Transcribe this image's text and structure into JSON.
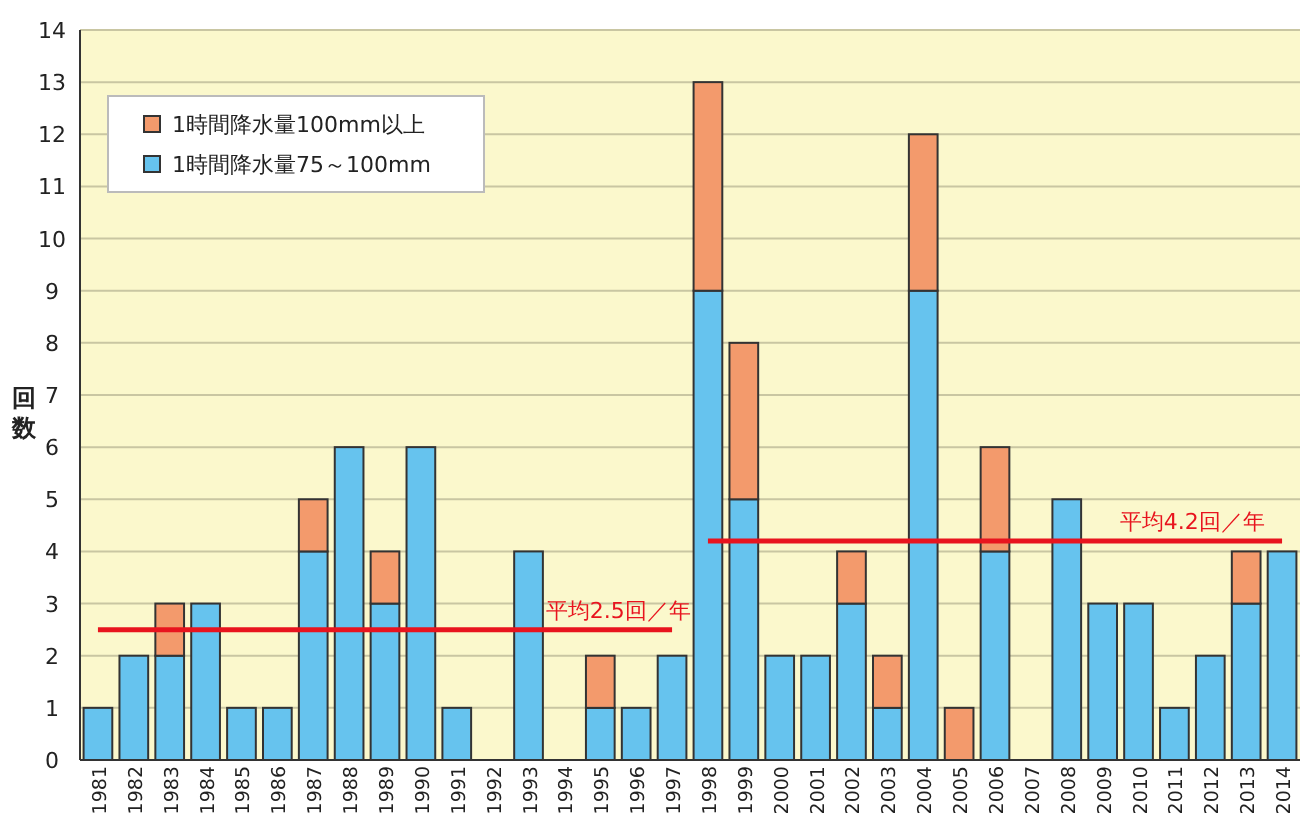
{
  "chart_data": {
    "type": "bar",
    "stacked": true,
    "ylabel": "回数",
    "categories": [
      "1981",
      "1982",
      "1983",
      "1984",
      "1985",
      "1986",
      "1987",
      "1988",
      "1989",
      "1990",
      "1991",
      "1992",
      "1993",
      "1994",
      "1995",
      "1996",
      "1997",
      "1998",
      "1999",
      "2000",
      "2001",
      "2002",
      "2003",
      "2004",
      "2005",
      "2006",
      "2007",
      "2008",
      "2009",
      "2010",
      "2011",
      "2012",
      "2013",
      "2014"
    ],
    "series": [
      {
        "name": "1時間降水量75～100mm",
        "color": "#66c3ee",
        "values": [
          1,
          2,
          2,
          3,
          1,
          1,
          4,
          6,
          3,
          6,
          1,
          null,
          4,
          null,
          1,
          1,
          2,
          9,
          5,
          2,
          2,
          3,
          1,
          9,
          null,
          4,
          null,
          5,
          3,
          3,
          1,
          2,
          3,
          4
        ]
      },
      {
        "name": "1時間降水量100mm以上",
        "color": "#f39a6c",
        "values": [
          null,
          null,
          1,
          null,
          null,
          null,
          1,
          null,
          1,
          null,
          null,
          null,
          null,
          null,
          1,
          null,
          null,
          4,
          3,
          null,
          null,
          1,
          1,
          3,
          1,
          2,
          null,
          null,
          null,
          null,
          null,
          null,
          1,
          null
        ]
      },
      {
        "name": "平均2.5回／年",
        "type": "line",
        "color": "#e8141e",
        "values": [
          2.5,
          2.5,
          2.5,
          2.5,
          2.5,
          2.5,
          2.5,
          2.5,
          2.5,
          2.5,
          2.5,
          2.5,
          2.5,
          2.5,
          2.5,
          2.5,
          2.5,
          null,
          null,
          null,
          null,
          null,
          null,
          null,
          null,
          null,
          null,
          null,
          null,
          null,
          null,
          null,
          null,
          null
        ]
      },
      {
        "name": "平均4.2回／年",
        "type": "line",
        "color": "#e8141e",
        "values": [
          null,
          null,
          null,
          null,
          null,
          null,
          null,
          null,
          null,
          null,
          null,
          null,
          null,
          null,
          null,
          null,
          null,
          4.2,
          4.2,
          4.2,
          4.2,
          4.2,
          4.2,
          4.2,
          4.2,
          4.2,
          4.2,
          4.2,
          4.2,
          4.2,
          4.2,
          4.2,
          4.2,
          4.2
        ]
      }
    ],
    "ylim": [
      0,
      14
    ],
    "yticks": [
      0,
      1,
      2,
      3,
      4,
      5,
      6,
      7,
      8,
      9,
      10,
      11,
      12,
      13,
      14
    ],
    "grid": "y",
    "legend": "top left"
  }
}
